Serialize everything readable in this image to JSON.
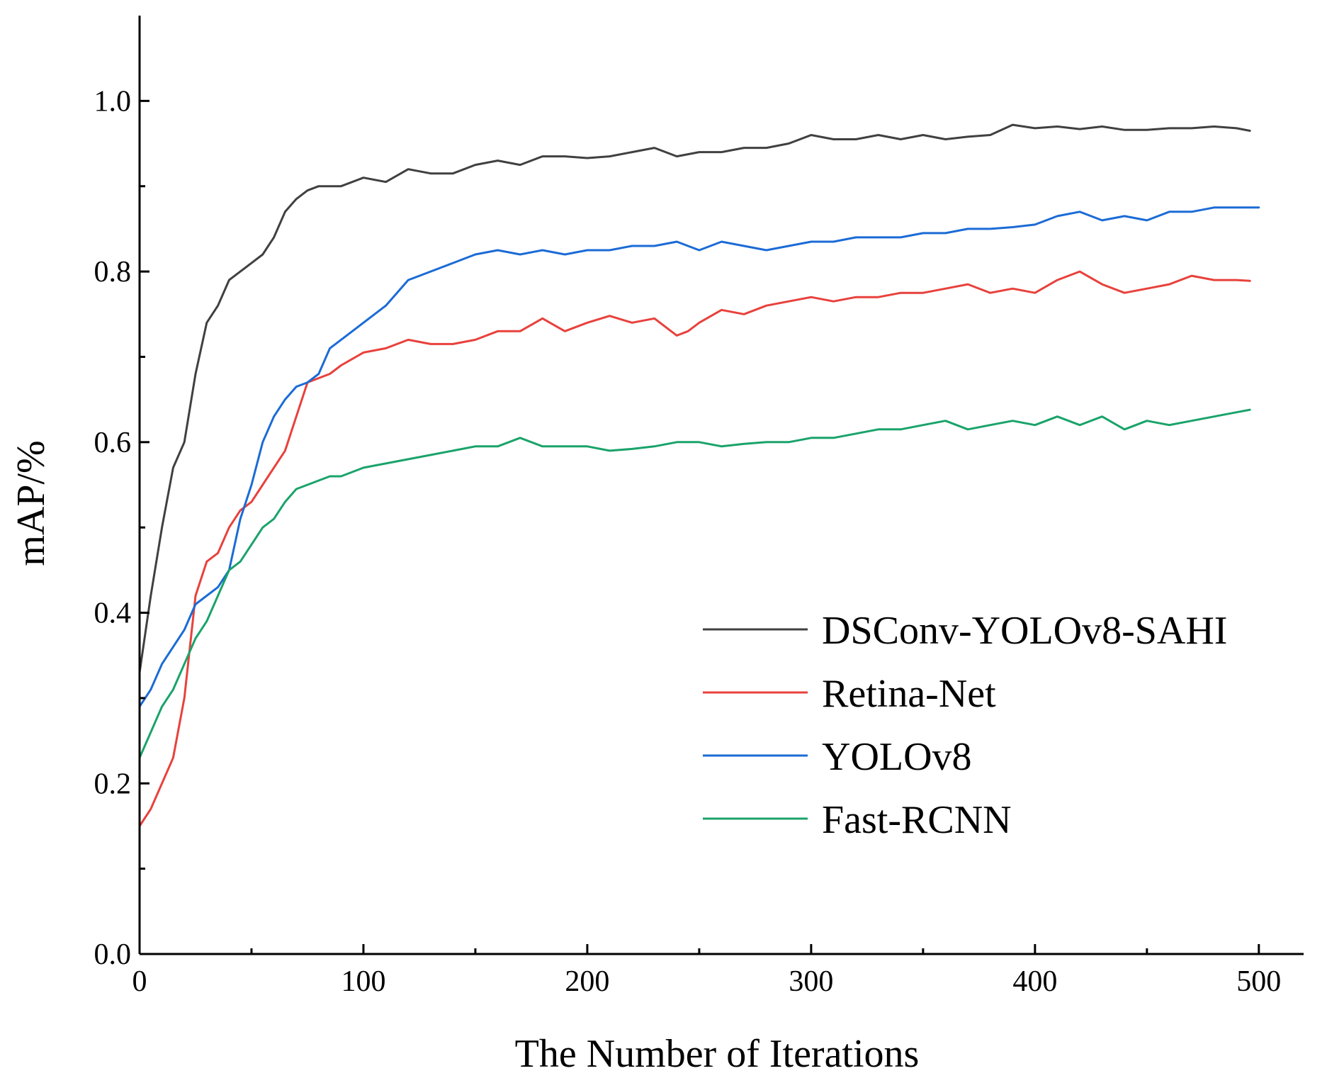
{
  "chart_data": {
    "type": "line",
    "title": "",
    "xlabel": "The Number of Iterations",
    "ylabel": "mAP/%",
    "xlim": [
      0,
      520
    ],
    "ylim": [
      0,
      1.1
    ],
    "xticks": [
      0,
      100,
      200,
      300,
      400,
      500
    ],
    "xtick_labels": [
      "0",
      "100",
      "200",
      "300",
      "400",
      "500"
    ],
    "yticks": [
      0,
      0.2,
      0.4,
      0.6,
      0.8,
      1.0
    ],
    "ytick_labels": [
      "0.0",
      "0.2",
      "0.4",
      "0.6",
      "0.8",
      "1.0"
    ],
    "grid": false,
    "legend_position": "right",
    "series": [
      {
        "name": "DSConv-YOLOv8-SAHI",
        "color": "#404040",
        "x": [
          0,
          5,
          10,
          15,
          20,
          25,
          30,
          35,
          40,
          45,
          50,
          55,
          60,
          65,
          70,
          75,
          80,
          85,
          90,
          100,
          110,
          120,
          130,
          140,
          150,
          160,
          170,
          180,
          190,
          200,
          210,
          220,
          230,
          240,
          250,
          260,
          270,
          280,
          290,
          300,
          310,
          320,
          330,
          340,
          350,
          360,
          370,
          380,
          390,
          400,
          410,
          420,
          430,
          440,
          450,
          460,
          470,
          480,
          490,
          496
        ],
        "values": [
          0.33,
          0.42,
          0.5,
          0.57,
          0.6,
          0.68,
          0.74,
          0.76,
          0.79,
          0.8,
          0.81,
          0.82,
          0.84,
          0.87,
          0.885,
          0.895,
          0.9,
          0.9,
          0.9,
          0.91,
          0.905,
          0.92,
          0.915,
          0.915,
          0.925,
          0.93,
          0.925,
          0.935,
          0.935,
          0.933,
          0.935,
          0.94,
          0.945,
          0.935,
          0.94,
          0.94,
          0.945,
          0.945,
          0.95,
          0.96,
          0.955,
          0.955,
          0.96,
          0.955,
          0.96,
          0.955,
          0.958,
          0.96,
          0.972,
          0.968,
          0.97,
          0.967,
          0.97,
          0.966,
          0.966,
          0.968,
          0.968,
          0.97,
          0.968,
          0.965
        ]
      },
      {
        "name": "Retina-Net",
        "color": "#e8413c",
        "x": [
          0,
          5,
          10,
          15,
          20,
          25,
          30,
          35,
          40,
          45,
          50,
          55,
          60,
          65,
          70,
          75,
          80,
          85,
          90,
          100,
          110,
          120,
          130,
          140,
          150,
          160,
          170,
          180,
          190,
          200,
          210,
          220,
          230,
          240,
          245,
          250,
          260,
          270,
          280,
          290,
          300,
          310,
          320,
          330,
          340,
          350,
          360,
          370,
          380,
          390,
          400,
          410,
          420,
          430,
          440,
          450,
          460,
          470,
          480,
          490,
          496
        ],
        "values": [
          0.15,
          0.17,
          0.2,
          0.23,
          0.3,
          0.42,
          0.46,
          0.47,
          0.5,
          0.52,
          0.53,
          0.55,
          0.57,
          0.59,
          0.63,
          0.67,
          0.675,
          0.68,
          0.69,
          0.705,
          0.71,
          0.72,
          0.715,
          0.715,
          0.72,
          0.73,
          0.73,
          0.745,
          0.73,
          0.74,
          0.748,
          0.74,
          0.745,
          0.725,
          0.73,
          0.74,
          0.755,
          0.75,
          0.76,
          0.765,
          0.77,
          0.765,
          0.77,
          0.77,
          0.775,
          0.775,
          0.78,
          0.785,
          0.775,
          0.78,
          0.775,
          0.79,
          0.8,
          0.785,
          0.775,
          0.78,
          0.785,
          0.795,
          0.79,
          0.79,
          0.789
        ]
      },
      {
        "name": "YOLOv8",
        "color": "#1b6bd6",
        "x": [
          0,
          5,
          10,
          15,
          20,
          25,
          30,
          35,
          40,
          45,
          50,
          55,
          60,
          65,
          70,
          75,
          80,
          85,
          90,
          100,
          110,
          120,
          130,
          140,
          150,
          160,
          170,
          180,
          190,
          200,
          210,
          220,
          230,
          240,
          250,
          260,
          270,
          280,
          290,
          300,
          310,
          320,
          330,
          340,
          350,
          360,
          370,
          380,
          390,
          400,
          410,
          420,
          430,
          440,
          450,
          460,
          470,
          480,
          490,
          500
        ],
        "values": [
          0.29,
          0.31,
          0.34,
          0.36,
          0.38,
          0.41,
          0.42,
          0.43,
          0.45,
          0.51,
          0.55,
          0.6,
          0.63,
          0.65,
          0.665,
          0.67,
          0.68,
          0.71,
          0.72,
          0.74,
          0.76,
          0.79,
          0.8,
          0.81,
          0.82,
          0.825,
          0.82,
          0.825,
          0.82,
          0.825,
          0.825,
          0.83,
          0.83,
          0.835,
          0.825,
          0.835,
          0.83,
          0.825,
          0.83,
          0.835,
          0.835,
          0.84,
          0.84,
          0.84,
          0.845,
          0.845,
          0.85,
          0.85,
          0.852,
          0.855,
          0.865,
          0.87,
          0.86,
          0.865,
          0.86,
          0.87,
          0.87,
          0.875,
          0.875,
          0.875
        ]
      },
      {
        "name": "Fast-RCNN",
        "color": "#1aa36a",
        "x": [
          0,
          5,
          10,
          15,
          20,
          25,
          30,
          35,
          40,
          45,
          50,
          55,
          60,
          65,
          70,
          75,
          80,
          85,
          90,
          100,
          110,
          120,
          130,
          140,
          150,
          160,
          170,
          180,
          190,
          200,
          210,
          220,
          230,
          240,
          250,
          260,
          270,
          280,
          290,
          300,
          310,
          320,
          330,
          340,
          350,
          360,
          370,
          380,
          390,
          400,
          410,
          420,
          430,
          440,
          450,
          460,
          470,
          480,
          490,
          496
        ],
        "values": [
          0.23,
          0.26,
          0.29,
          0.31,
          0.34,
          0.37,
          0.39,
          0.42,
          0.45,
          0.46,
          0.48,
          0.5,
          0.51,
          0.53,
          0.545,
          0.55,
          0.555,
          0.56,
          0.56,
          0.57,
          0.575,
          0.58,
          0.585,
          0.59,
          0.595,
          0.595,
          0.605,
          0.595,
          0.595,
          0.595,
          0.59,
          0.592,
          0.595,
          0.6,
          0.6,
          0.595,
          0.598,
          0.6,
          0.6,
          0.605,
          0.605,
          0.61,
          0.615,
          0.615,
          0.62,
          0.625,
          0.615,
          0.62,
          0.625,
          0.62,
          0.63,
          0.62,
          0.63,
          0.615,
          0.625,
          0.62,
          0.625,
          0.63,
          0.635,
          0.638
        ]
      }
    ]
  }
}
